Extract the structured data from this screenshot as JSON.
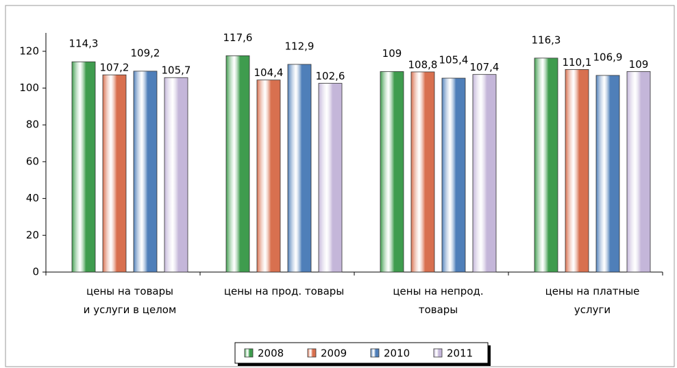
{
  "chart_data": {
    "type": "bar",
    "categories": [
      "цены на товары\nи услуги в целом",
      "цены на прод. товары",
      "цены на непрод.\nтовары",
      "цены на платные\nуслуги"
    ],
    "series": [
      {
        "name": "2008",
        "color": "#3f9c4e",
        "values": [
          114.3,
          117.6,
          109,
          116.3
        ],
        "value_labels": [
          "114,3",
          "117,6",
          "109",
          "116,3"
        ]
      },
      {
        "name": "2009",
        "color": "#d8704f",
        "values": [
          107.2,
          104.4,
          108.8,
          110.1
        ],
        "value_labels": [
          "107,2",
          "104,4",
          "108,8",
          "110,1"
        ]
      },
      {
        "name": "2010",
        "color": "#4f7fb9",
        "values": [
          109.2,
          112.9,
          105.4,
          106.9
        ],
        "value_labels": [
          "109,2",
          "112,9",
          "105,4",
          "106,9"
        ]
      },
      {
        "name": "2011",
        "color": "#c4b6d9",
        "values": [
          105.7,
          102.6,
          107.4,
          109
        ],
        "value_labels": [
          "105,7",
          "102,6",
          "107,4",
          "109"
        ]
      }
    ],
    "ylim": [
      0,
      130
    ],
    "yticks": [
      0,
      20,
      40,
      60,
      80,
      100,
      120
    ],
    "grid": false,
    "legend": "bottom"
  }
}
